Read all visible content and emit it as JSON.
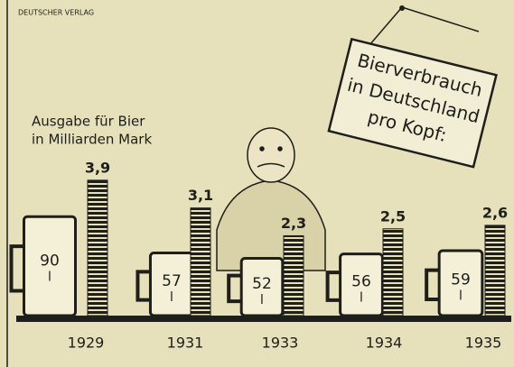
{
  "source": "DEUTSCHER VERLAG",
  "chart_data": {
    "type": "pictogram",
    "title": [
      "Bierverbrauch",
      "in Deutschland",
      "pro Kopf:"
    ],
    "subtitle": [
      "Ausgabe für Bier",
      "in Milliarden Mark"
    ],
    "categories": [
      "1929",
      "1931",
      "1933",
      "1934",
      "1935"
    ],
    "series": [
      {
        "unit": "l",
        "color": "#f4f0d8",
        "values": [
          90,
          57,
          52,
          56,
          59
        ]
      },
      {
        "color": "#1e1e1a",
        "values": [
          3.9,
          3.1,
          2.3,
          2.5,
          2.6
        ],
        "value_labels": [
          "3,9",
          "3,1",
          "2,3",
          "2,5",
          "2,6"
        ]
      }
    ]
  }
}
